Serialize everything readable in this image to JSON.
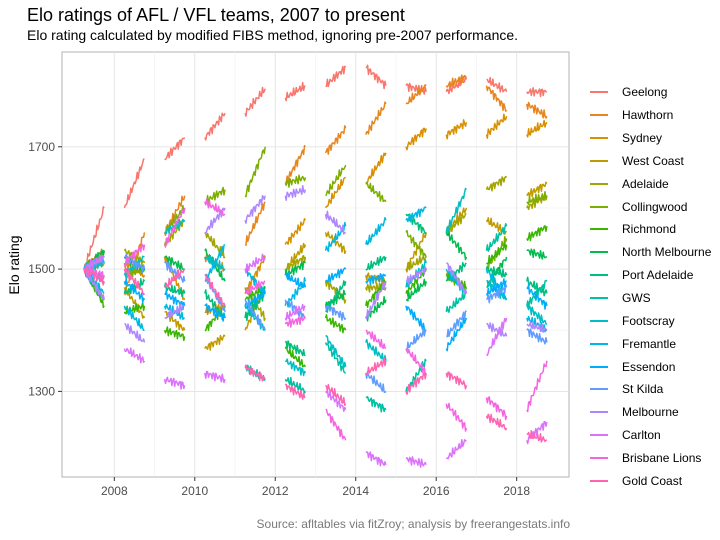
{
  "title": "Elo ratings of AFL / VFL teams, 2007 to present",
  "subtitle": "Elo rating calculated by modified FIBS method, ignoring pre-2007 performance.",
  "caption": "Source: afltables via fitZroy; analysis by freerangestats.info",
  "chart_data": {
    "type": "line",
    "title": "Elo ratings of AFL / VFL teams, 2007 to present",
    "xlabel": "",
    "ylabel": "Elo rating",
    "xlim": [
      2006.7,
      2019.3
    ],
    "ylim": [
      1160,
      1855
    ],
    "x_ticks": [
      2008,
      2010,
      2012,
      2014,
      2016,
      2018
    ],
    "x_tick_labels": [
      "2008",
      "2010",
      "2012",
      "2014",
      "2016",
      "2018"
    ],
    "y_ticks": [
      1300,
      1500,
      1700
    ],
    "y_tick_labels": [
      "1300",
      "1500",
      "1700"
    ],
    "grid": true,
    "legend_position": "right",
    "season_start_offset": 0.25,
    "season_length": 0.5,
    "series": [
      {
        "name": "Geelong",
        "color": "#F8766D",
        "values": [
          [
            1500,
            1600
          ],
          [
            1600,
            1680
          ],
          [
            1680,
            1715
          ],
          [
            1715,
            1755
          ],
          [
            1755,
            1795
          ],
          [
            1780,
            1800
          ],
          [
            1800,
            1830
          ],
          [
            1830,
            1800
          ],
          [
            1800,
            1790
          ],
          [
            1790,
            1810
          ],
          [
            1810,
            1790
          ],
          [
            1790,
            1790
          ]
        ]
      },
      {
        "name": "Hawthorn",
        "color": "#E7851E",
        "values": [
          [
            1500,
            1450
          ],
          [
            1460,
            1560
          ],
          [
            1560,
            1620
          ],
          [
            1520,
            1500
          ],
          [
            1540,
            1610
          ],
          [
            1640,
            1700
          ],
          [
            1690,
            1730
          ],
          [
            1720,
            1770
          ],
          [
            1770,
            1800
          ],
          [
            1800,
            1815
          ],
          [
            1800,
            1760
          ],
          [
            1770,
            1750
          ]
        ]
      },
      {
        "name": "Sydney",
        "color": "#D89000",
        "values": [
          [
            1500,
            1530
          ],
          [
            1510,
            1490
          ],
          [
            1520,
            1450
          ],
          [
            1430,
            1440
          ],
          [
            1460,
            1520
          ],
          [
            1540,
            1580
          ],
          [
            1600,
            1650
          ],
          [
            1640,
            1690
          ],
          [
            1700,
            1730
          ],
          [
            1720,
            1740
          ],
          [
            1720,
            1750
          ],
          [
            1720,
            1740
          ]
        ]
      },
      {
        "name": "West Coast",
        "color": "#C09B00",
        "values": [
          [
            1500,
            1510
          ],
          [
            1470,
            1420
          ],
          [
            1430,
            1400
          ],
          [
            1370,
            1390
          ],
          [
            1400,
            1470
          ],
          [
            1500,
            1540
          ],
          [
            1560,
            1530
          ],
          [
            1490,
            1480
          ],
          [
            1500,
            1560
          ],
          [
            1560,
            1600
          ],
          [
            1580,
            1560
          ],
          [
            1620,
            1640
          ]
        ]
      },
      {
        "name": "Adelaide",
        "color": "#A3A500",
        "values": [
          [
            1500,
            1530
          ],
          [
            1530,
            1510
          ],
          [
            1540,
            1580
          ],
          [
            1560,
            1520
          ],
          [
            1470,
            1420
          ],
          [
            1500,
            1520
          ],
          [
            1480,
            1450
          ],
          [
            1470,
            1470
          ],
          [
            1500,
            1520
          ],
          [
            1560,
            1590
          ],
          [
            1630,
            1650
          ],
          [
            1600,
            1620
          ]
        ]
      },
      {
        "name": "Collingwood",
        "color": "#7CAE00",
        "values": [
          [
            1500,
            1520
          ],
          [
            1490,
            1500
          ],
          [
            1560,
            1600
          ],
          [
            1610,
            1630
          ],
          [
            1620,
            1700
          ],
          [
            1640,
            1650
          ],
          [
            1620,
            1670
          ],
          [
            1640,
            1610
          ],
          [
            1560,
            1520
          ],
          [
            1490,
            1470
          ],
          [
            1500,
            1550
          ],
          [
            1610,
            1620
          ]
        ]
      },
      {
        "name": "Richmond",
        "color": "#39B600",
        "values": [
          [
            1500,
            1440
          ],
          [
            1430,
            1440
          ],
          [
            1400,
            1390
          ],
          [
            1400,
            1440
          ],
          [
            1450,
            1470
          ],
          [
            1370,
            1340
          ],
          [
            1420,
            1400
          ],
          [
            1440,
            1480
          ],
          [
            1460,
            1500
          ],
          [
            1490,
            1470
          ],
          [
            1510,
            1540
          ],
          [
            1550,
            1570
          ]
        ]
      },
      {
        "name": "North Melbourne",
        "color": "#00BB4E",
        "values": [
          [
            1500,
            1530
          ],
          [
            1520,
            1500
          ],
          [
            1520,
            1500
          ],
          [
            1530,
            1480
          ],
          [
            1420,
            1470
          ],
          [
            1490,
            1510
          ],
          [
            1440,
            1460
          ],
          [
            1420,
            1450
          ],
          [
            1450,
            1480
          ],
          [
            1560,
            1520
          ],
          [
            1470,
            1520
          ],
          [
            1530,
            1520
          ]
        ]
      },
      {
        "name": "Port Adelaide",
        "color": "#00BF7D",
        "values": [
          [
            1500,
            1450
          ],
          [
            1460,
            1480
          ],
          [
            1470,
            1460
          ],
          [
            1460,
            1420
          ],
          [
            1420,
            1460
          ],
          [
            1380,
            1360
          ],
          [
            1430,
            1480
          ],
          [
            1500,
            1520
          ],
          [
            1590,
            1560
          ],
          [
            1480,
            1510
          ],
          [
            1500,
            1490
          ],
          [
            1480,
            1460
          ]
        ]
      },
      {
        "name": "GWS",
        "color": "#00C1A3",
        "values": [
          null,
          null,
          null,
          null,
          [
            1340,
            1320
          ],
          [
            1320,
            1300
          ],
          [
            1380,
            1330
          ],
          [
            1290,
            1270
          ],
          [
            1300,
            1350
          ],
          [
            1430,
            1460
          ],
          [
            1530,
            1570
          ],
          [
            1440,
            1480
          ]
        ]
      },
      {
        "name": "Footscray",
        "color": "#00BFC4",
        "values": [
          [
            1500,
            1510
          ],
          [
            1490,
            1520
          ],
          [
            1560,
            1580
          ],
          [
            1520,
            1500
          ],
          [
            1440,
            1400
          ],
          [
            1350,
            1330
          ],
          [
            1390,
            1340
          ],
          [
            1380,
            1350
          ],
          [
            1470,
            1510
          ],
          [
            1560,
            1630
          ],
          [
            1480,
            1450
          ],
          [
            1440,
            1410
          ]
        ]
      },
      {
        "name": "Fremantle",
        "color": "#00B9E3",
        "values": [
          [
            1500,
            1460
          ],
          [
            1440,
            1400
          ],
          [
            1440,
            1420
          ],
          [
            1480,
            1540
          ],
          [
            1500,
            1460
          ],
          [
            1440,
            1480
          ],
          [
            1530,
            1570
          ],
          [
            1540,
            1580
          ],
          [
            1580,
            1600
          ],
          [
            1500,
            1460
          ],
          [
            1500,
            1450
          ],
          [
            1420,
            1400
          ]
        ]
      },
      {
        "name": "Essendon",
        "color": "#00ADFA",
        "values": [
          [
            1500,
            1480
          ],
          [
            1480,
            1450
          ],
          [
            1460,
            1440
          ],
          [
            1440,
            1420
          ],
          [
            1440,
            1460
          ],
          [
            1490,
            1470
          ],
          [
            1480,
            1500
          ],
          [
            1480,
            1490
          ],
          [
            1440,
            1400
          ],
          [
            1370,
            1420
          ],
          [
            1460,
            1480
          ],
          [
            1470,
            1440
          ]
        ]
      },
      {
        "name": "St Kilda",
        "color": "#619CFF",
        "values": [
          [
            1500,
            1520
          ],
          [
            1520,
            1500
          ],
          [
            1510,
            1480
          ],
          [
            1490,
            1430
          ],
          [
            1450,
            1400
          ],
          [
            1450,
            1420
          ],
          [
            1440,
            1420
          ],
          [
            1330,
            1300
          ],
          [
            1370,
            1400
          ],
          [
            1390,
            1430
          ],
          [
            1450,
            1470
          ],
          [
            1400,
            1380
          ]
        ]
      },
      {
        "name": "Melbourne",
        "color": "#AE87FF",
        "values": [
          [
            1500,
            1450
          ],
          [
            1410,
            1380
          ],
          [
            1420,
            1440
          ],
          [
            1560,
            1600
          ],
          [
            1580,
            1620
          ],
          [
            1620,
            1630
          ],
          [
            1590,
            1560
          ],
          [
            1420,
            1480
          ],
          [
            1480,
            1500
          ],
          [
            1510,
            1460
          ],
          [
            1410,
            1390
          ],
          [
            1410,
            1400
          ]
        ]
      },
      {
        "name": "Carlton",
        "color": "#DB72FB",
        "values": [
          [
            1500,
            1520
          ],
          [
            1370,
            1350
          ],
          [
            1320,
            1310
          ],
          [
            1330,
            1320
          ],
          [
            1500,
            1520
          ],
          [
            1420,
            1440
          ],
          [
            1300,
            1270
          ],
          [
            1200,
            1180
          ],
          [
            1190,
            1180
          ],
          [
            1190,
            1220
          ],
          [
            1360,
            1420
          ],
          [
            1220,
            1250
          ]
        ]
      },
      {
        "name": "Brisbane Lions",
        "color": "#F564E3",
        "values": [
          [
            1500,
            1490
          ],
          [
            1510,
            1540
          ],
          [
            1540,
            1600
          ],
          [
            1610,
            1590
          ],
          [
            1460,
            1480
          ],
          [
            1410,
            1420
          ],
          [
            1270,
            1220
          ],
          [
            1400,
            1370
          ],
          [
            1370,
            1330
          ],
          [
            1280,
            1240
          ],
          [
            1290,
            1260
          ],
          [
            1270,
            1350
          ]
        ]
      },
      {
        "name": "Gold Coast",
        "color": "#FF64B0",
        "values": [
          [
            1500,
            1480
          ],
          [
            1500,
            1460
          ],
          [
            1470,
            1500
          ],
          [
            1490,
            1440
          ],
          [
            1340,
            1320
          ],
          [
            1310,
            1290
          ],
          [
            1310,
            1280
          ],
          [
            1330,
            1350
          ],
          [
            1300,
            1330
          ],
          [
            1330,
            1310
          ],
          [
            1260,
            1240
          ],
          [
            1230,
            1220
          ]
        ]
      }
    ]
  }
}
